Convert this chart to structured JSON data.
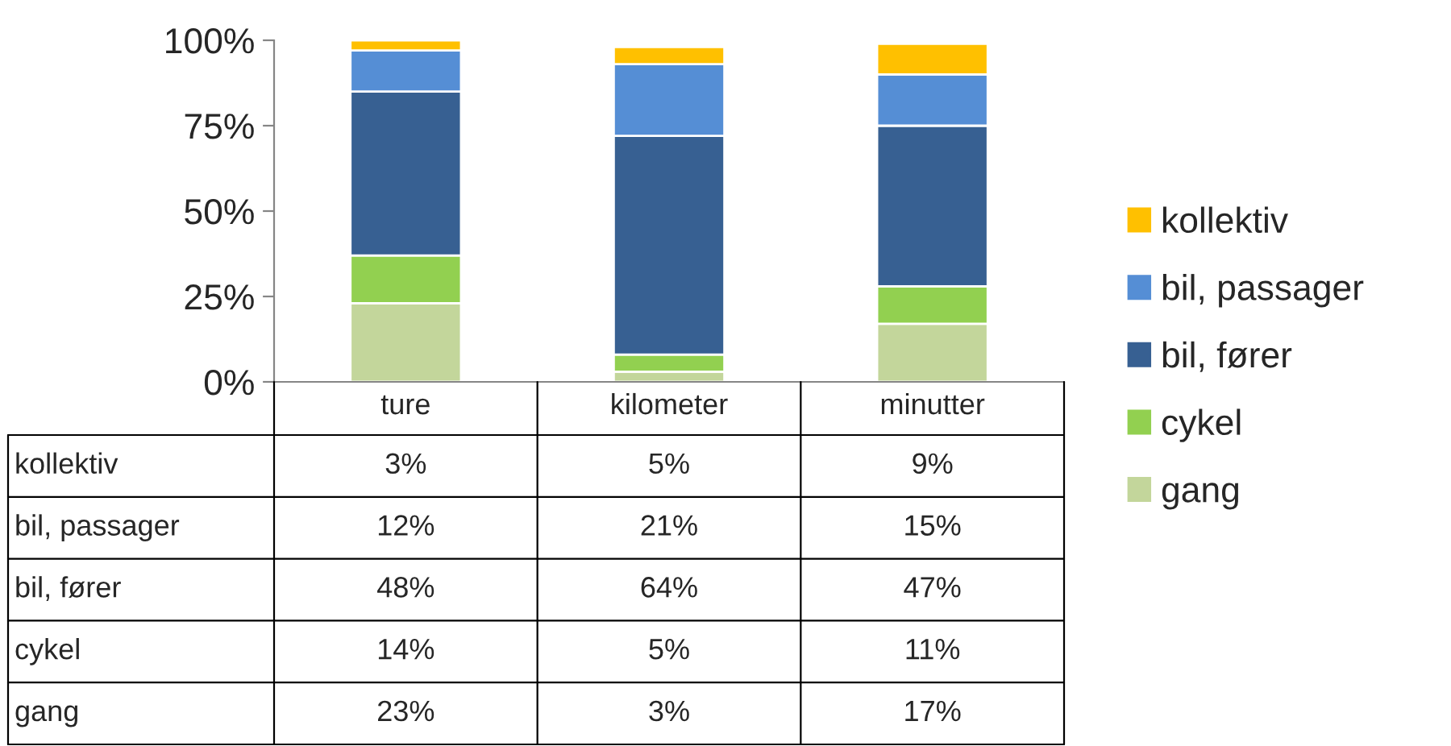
{
  "chart_data": {
    "type": "bar",
    "stacked": true,
    "categories": [
      "ture",
      "kilometer",
      "minutter"
    ],
    "series": [
      {
        "name": "gang",
        "color": "#c3d69b",
        "values": [
          23,
          3,
          17
        ],
        "value_labels": [
          "23%",
          "3%",
          "17%"
        ]
      },
      {
        "name": "cykel",
        "color": "#92d050",
        "values": [
          14,
          5,
          11
        ],
        "value_labels": [
          "14%",
          "5%",
          "11%"
        ]
      },
      {
        "name": "bil, fører",
        "color": "#376092",
        "values": [
          48,
          64,
          47
        ],
        "value_labels": [
          "48%",
          "64%",
          "47%"
        ]
      },
      {
        "name": "bil, passager",
        "color": "#558ed5",
        "values": [
          12,
          21,
          15
        ],
        "value_labels": [
          "12%",
          "21%",
          "15%"
        ]
      },
      {
        "name": "kollektiv",
        "color": "#ffc000",
        "values": [
          3,
          5,
          9
        ],
        "value_labels": [
          "3%",
          "5%",
          "9%"
        ]
      }
    ],
    "ylim": [
      0,
      100
    ],
    "yticks": [
      {
        "value": 0,
        "label": "0%"
      },
      {
        "value": 25,
        "label": "25%"
      },
      {
        "value": 50,
        "label": "50%"
      },
      {
        "value": 75,
        "label": "75%"
      },
      {
        "value": 100,
        "label": "100%"
      }
    ],
    "grid": false,
    "legend": "right",
    "data_labels": true
  }
}
